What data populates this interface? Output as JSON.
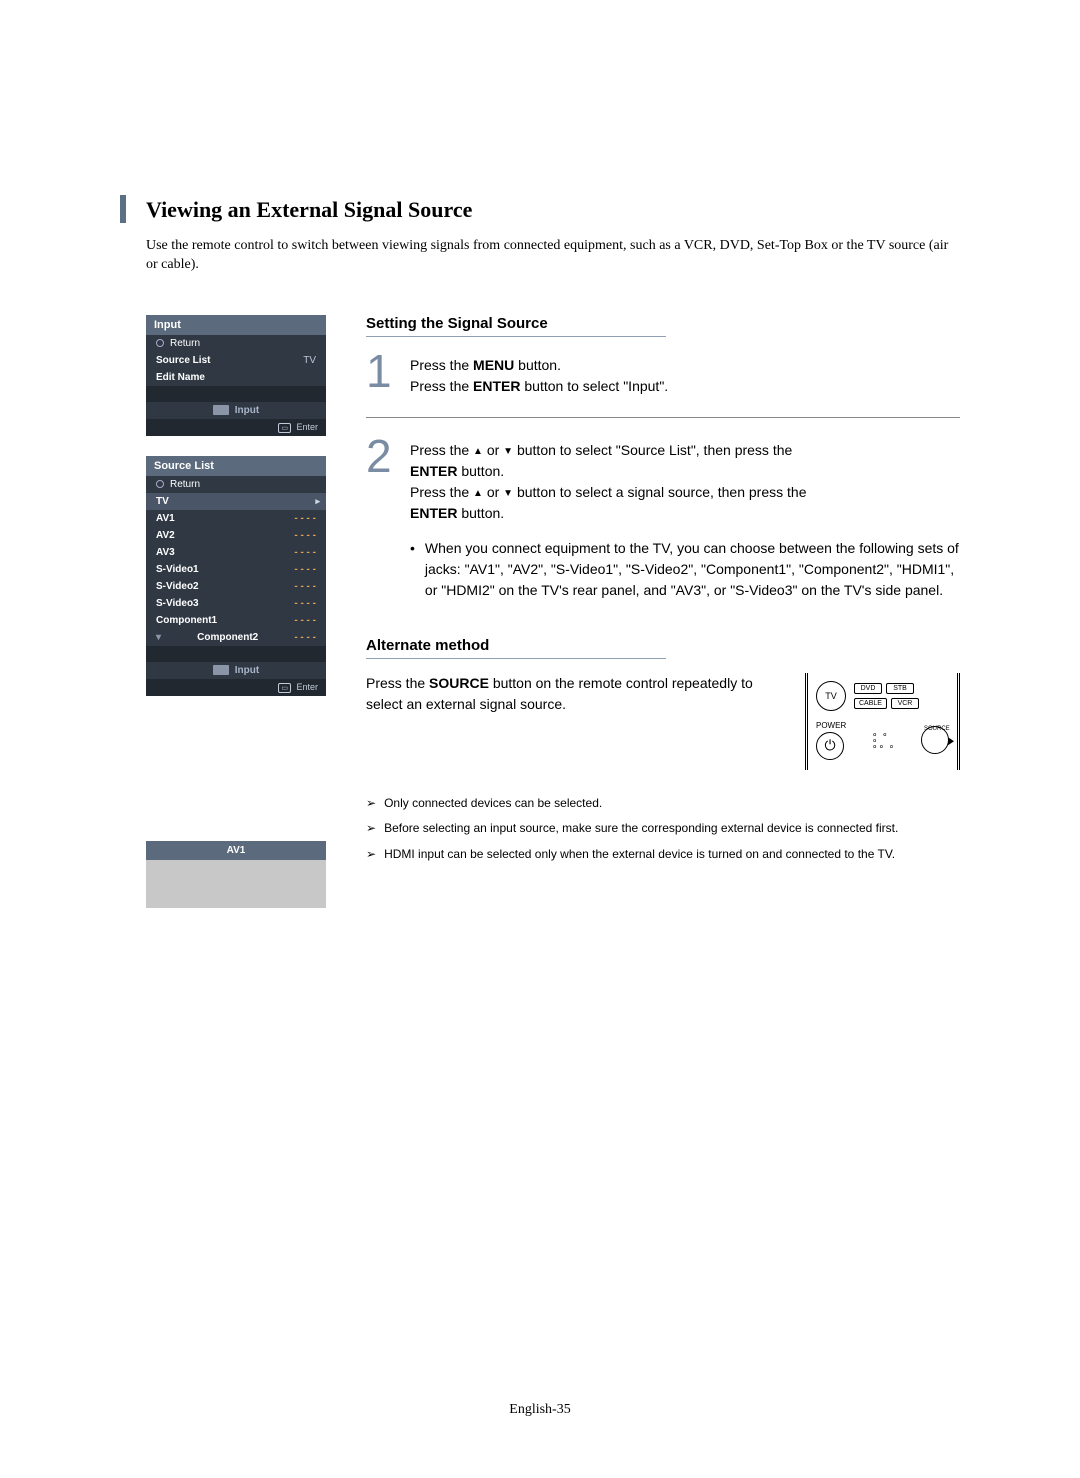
{
  "title": "Viewing an External Signal Source",
  "intro": "Use the remote control to switch between viewing signals from connected equipment, such as a VCR, DVD, Set-Top Box or the TV source (air or cable).",
  "section1_head": "Setting the Signal Source",
  "step1_num": "1",
  "step1_a": "Press the ",
  "step1_menu": "MENU",
  "step1_b": " button.",
  "step1_c": "Press the ",
  "step1_enter": "ENTER",
  "step1_d": " button to select \"Input\".",
  "step2_num": "2",
  "step2_a": "Press the ",
  "step2_b": " or ",
  "step2_c": " button to select \"Source List\", then press the ",
  "step2_enter1": "ENTER",
  "step2_d": " button.",
  "step2_e": "Press the ",
  "step2_f": " or ",
  "step2_g": " button to select a signal source, then press the ",
  "step2_enter2": "ENTER",
  "step2_h": " button.",
  "step2_bullet": "When you connect equipment to the TV, you can choose between the following sets of jacks: \"AV1\", \"AV2\", \"S-Video1\", \"S-Video2\", \"Component1\", \"Component2\", \"HDMI1\", or \"HDMI2\" on the TV's rear panel, and \"AV3\", or \"S-Video3\" on the TV's side panel.",
  "alt_head": "Alternate method",
  "alt_a": "Press the ",
  "alt_source": "SOURCE",
  "alt_b": " button on the remote control repeatedly to select an external signal source.",
  "note1": "Only connected devices can be selected.",
  "note2": "Before selecting an input source, make sure the corresponding external device is connected first.",
  "note3": "HDMI input can be selected only when the external device is turned on and connected to the TV.",
  "footer": "English-35",
  "menu1": {
    "title": "Input",
    "return": "Return",
    "r1_label": "Source List",
    "r1_val": "TV",
    "r2_label": "Edit Name",
    "label": "Input",
    "enter": "Enter"
  },
  "menu2": {
    "title": "Source List",
    "return": "Return",
    "rows": [
      "TV",
      "AV1",
      "AV2",
      "AV3",
      "S-Video1",
      "S-Video2",
      "S-Video3",
      "Component1",
      "Component2"
    ],
    "dashes": "- - - -",
    "label": "Input",
    "enter": "Enter"
  },
  "av_box": "AV1",
  "remote": {
    "tv": "TV",
    "dvd": "DVD",
    "stb": "STB",
    "cable": "CABLE",
    "vcr": "VCR",
    "power": "POWER",
    "source": "SOURCE"
  },
  "colors": {
    "accent": "#5b6f85",
    "step_num": "#7a8ca3",
    "menu_title_bg": "#5b6a7c",
    "menu_row_bg": "#303844",
    "menu_dash": "#e8a050"
  }
}
